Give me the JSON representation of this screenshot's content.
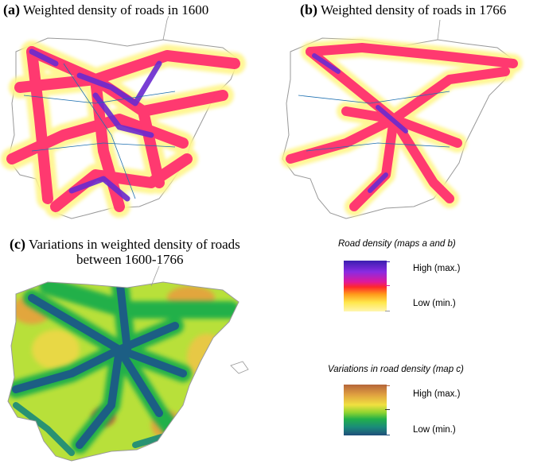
{
  "panels": [
    {
      "letter": "(a)",
      "title": "Weighted density of roads in 1600"
    },
    {
      "letter": "(b)",
      "title": "Weighted density of roads in 1766"
    },
    {
      "letter": "(c)",
      "title_line1": "Variations in weighted density of roads",
      "title_line2": "between 1600-1766"
    }
  ],
  "legend_density": {
    "title": "Road density (maps a and b)",
    "high": "High (max.)",
    "low": "Low (min.)",
    "colors": [
      "#3a1fb0",
      "#8a2be2",
      "#e0199a",
      "#ff2a2a",
      "#ff9a1a",
      "#ffe64a",
      "#fff6b0"
    ]
  },
  "legend_variation": {
    "title": "Variations in road density (map c)",
    "high": "High (max.)",
    "low": "Low (min.)",
    "colors": [
      "#b5653a",
      "#e0a040",
      "#f0e040",
      "#8fd430",
      "#22b04a",
      "#1a8a7a",
      "#1f4e7a"
    ]
  }
}
